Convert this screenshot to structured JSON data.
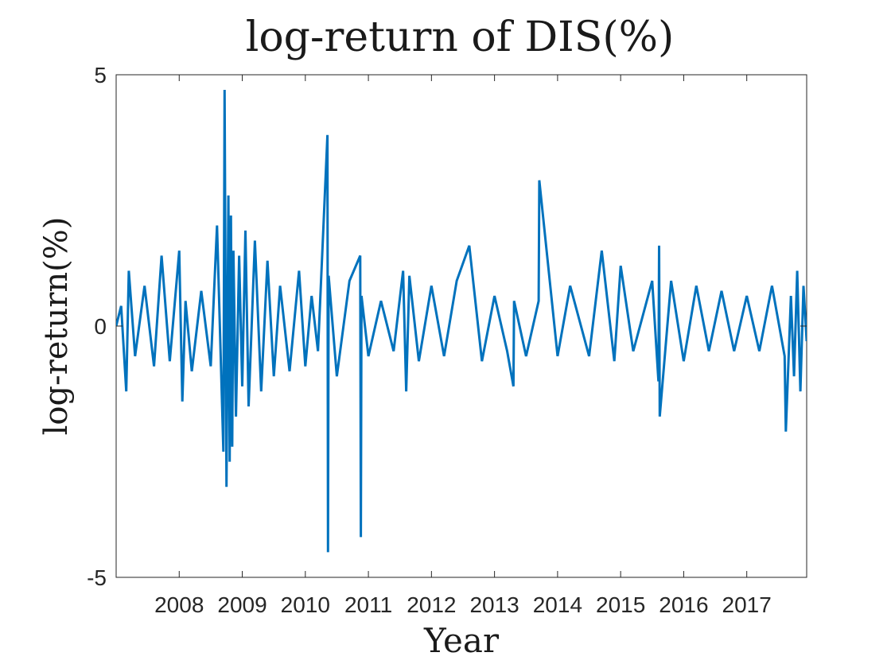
{
  "chart_data": {
    "type": "line",
    "title": "log-return of DIS(%)",
    "xlabel": "Year",
    "ylabel": "log-return(%)",
    "xlim": [
      2007.0,
      2017.95
    ],
    "ylim": [
      -5,
      5
    ],
    "xticks": [
      2008,
      2009,
      2010,
      2011,
      2012,
      2013,
      2014,
      2015,
      2016,
      2017
    ],
    "xtick_labels": [
      "2008",
      "2009",
      "2010",
      "2011",
      "2012",
      "2013",
      "2014",
      "2015",
      "2016",
      "2017"
    ],
    "yticks": [
      -5,
      0,
      5
    ],
    "ytick_labels": [
      "-5",
      "0",
      "5"
    ],
    "grid": false,
    "series": [
      {
        "color": "#0072BD",
        "x": [
          2007.0,
          2007.08,
          2007.16,
          2007.2,
          2007.3,
          2007.45,
          2007.6,
          2007.72,
          2007.85,
          2008.0,
          2008.05,
          2008.1,
          2008.2,
          2008.35,
          2008.5,
          2008.6,
          2008.7,
          2008.72,
          2008.75,
          2008.78,
          2008.8,
          2008.82,
          2008.84,
          2008.86,
          2008.9,
          2008.95,
          2009.0,
          2009.05,
          2009.1,
          2009.2,
          2009.3,
          2009.4,
          2009.5,
          2009.6,
          2009.75,
          2009.9,
          2010.0,
          2010.1,
          2010.2,
          2010.35,
          2010.36,
          2010.37,
          2010.5,
          2010.7,
          2010.87,
          2010.88,
          2010.89,
          2011.0,
          2011.2,
          2011.4,
          2011.55,
          2011.6,
          2011.65,
          2011.8,
          2012.0,
          2012.2,
          2012.4,
          2012.6,
          2012.8,
          2013.0,
          2013.2,
          2013.3,
          2013.31,
          2013.5,
          2013.7,
          2013.71,
          2014.0,
          2014.2,
          2014.5,
          2014.7,
          2014.9,
          2015.0,
          2015.2,
          2015.5,
          2015.6,
          2015.61,
          2015.62,
          2015.8,
          2016.0,
          2016.2,
          2016.4,
          2016.6,
          2016.8,
          2017.0,
          2017.2,
          2017.4,
          2017.6,
          2017.62,
          2017.7,
          2017.75,
          2017.8,
          2017.85,
          2017.9,
          2017.95
        ],
        "y": [
          0.0,
          0.4,
          -1.3,
          1.1,
          -0.6,
          0.8,
          -0.8,
          1.4,
          -0.7,
          1.5,
          -1.5,
          0.5,
          -0.9,
          0.7,
          -0.8,
          2.0,
          -2.5,
          4.7,
          -3.2,
          2.6,
          -2.7,
          2.2,
          -2.4,
          1.5,
          -1.8,
          1.4,
          -1.2,
          1.9,
          -1.6,
          1.7,
          -1.3,
          1.3,
          -1.0,
          0.8,
          -0.9,
          1.1,
          -0.8,
          0.6,
          -0.5,
          3.8,
          -4.5,
          1.0,
          -1.0,
          0.9,
          1.4,
          -4.2,
          0.6,
          -0.6,
          0.5,
          -0.5,
          1.1,
          -1.3,
          1.0,
          -0.7,
          0.8,
          -0.6,
          0.9,
          1.6,
          -0.7,
          0.6,
          -0.5,
          -1.2,
          0.5,
          -0.6,
          0.5,
          2.9,
          -0.6,
          0.8,
          -0.6,
          1.5,
          -0.7,
          1.2,
          -0.5,
          0.9,
          -1.1,
          1.6,
          -1.8,
          0.9,
          -0.7,
          0.8,
          -0.5,
          0.7,
          -0.5,
          0.6,
          -0.5,
          0.8,
          -0.6,
          -2.1,
          0.6,
          -1.0,
          1.1,
          -1.3,
          0.8,
          -0.3
        ]
      }
    ]
  }
}
